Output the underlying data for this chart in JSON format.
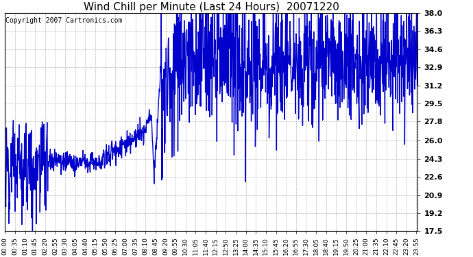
{
  "title": "Wind Chill per Minute (Last 24 Hours)  20071220",
  "copyright": "Copyright 2007 Cartronics.com",
  "line_color": "#0000CC",
  "background_color": "#ffffff",
  "plot_bg_color": "#ffffff",
  "grid_color": "#b0b0b0",
  "ylim": [
    17.5,
    38.0
  ],
  "yticks": [
    17.5,
    19.2,
    20.9,
    22.6,
    24.3,
    26.0,
    27.8,
    29.5,
    31.2,
    32.9,
    34.6,
    36.3,
    38.0
  ],
  "xtick_labels": [
    "00:00",
    "00:35",
    "01:10",
    "01:45",
    "02:20",
    "02:55",
    "03:30",
    "04:05",
    "04:40",
    "05:15",
    "05:50",
    "06:25",
    "07:00",
    "07:35",
    "08:10",
    "08:45",
    "09:20",
    "09:55",
    "10:30",
    "11:05",
    "11:40",
    "12:15",
    "12:50",
    "13:25",
    "14:00",
    "14:35",
    "15:10",
    "15:45",
    "16:20",
    "16:55",
    "17:30",
    "18:05",
    "18:40",
    "19:15",
    "19:50",
    "20:25",
    "21:00",
    "21:35",
    "22:10",
    "22:45",
    "23:20",
    "23:55"
  ],
  "title_fontsize": 11,
  "copyright_fontsize": 7,
  "tick_fontsize": 6.5,
  "ytick_fontsize": 8,
  "linewidth": 1.0
}
